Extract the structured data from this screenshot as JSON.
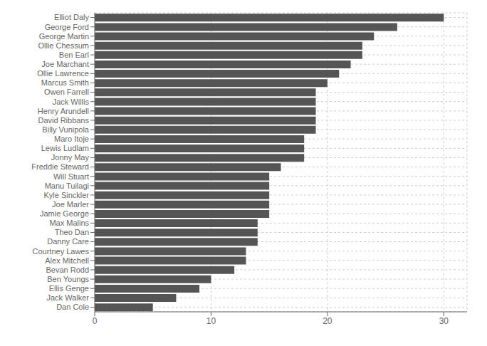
{
  "chart_data": {
    "type": "bar",
    "orientation": "horizontal",
    "categories": [
      "Elliot Daly",
      "George Ford",
      "George Martin",
      "Ollie Chessum",
      "Ben Earl",
      "Joe Marchant",
      "Ollie Lawrence",
      "Marcus Smith",
      "Owen Farrell",
      "Jack Willis",
      "Henry Arundell",
      "David Ribbans",
      "Billy Vunipola",
      "Maro Itoje",
      "Lewis Ludlam",
      "Jonny May",
      "Freddie Steward",
      "Will Stuart",
      "Manu Tuilagi",
      "Kyle Sinckler",
      "Joe Marler",
      "Jamie George",
      "Max Malins",
      "Theo Dan",
      "Danny Care",
      "Courtney Lawes",
      "Alex Mitchell",
      "Bevan Rodd",
      "Ben Youngs",
      "Ellis Genge",
      "Jack Walker",
      "Dan Cole"
    ],
    "values": [
      30,
      26,
      24,
      23,
      23,
      22,
      21,
      20,
      19,
      19,
      19,
      19,
      19,
      18,
      18,
      18,
      16,
      15,
      15,
      15,
      15,
      15,
      14,
      14,
      14,
      13,
      13,
      12,
      10,
      9,
      7,
      5
    ],
    "color": "#555555",
    "xlim": [
      0,
      32
    ],
    "xticks": [
      0,
      10,
      20,
      30
    ],
    "grid": true
  }
}
